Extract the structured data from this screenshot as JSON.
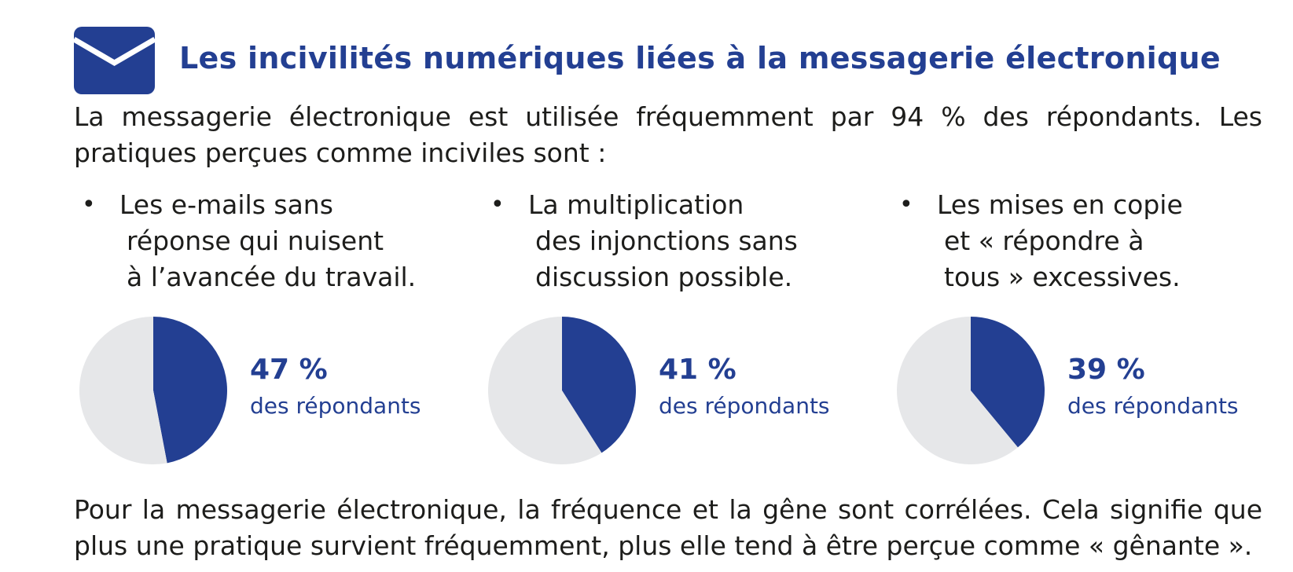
{
  "header": {
    "title": "Les incivilités numériques liées à la messagerie électronique",
    "icon": "envelope-icon",
    "brand_color": "#233f92"
  },
  "intro": "La messagerie électronique est utilisée fréquemment par 94 % des répondants. Les pratiques perçues comme inciviles sont :",
  "items": [
    {
      "lines": [
        "Les e-mails sans",
        "réponse qui nuisent",
        "à l’avancée du travail."
      ],
      "percent_label": "47 %",
      "sub": "des répondants"
    },
    {
      "lines": [
        "La multiplication",
        "des injonctions sans",
        "discussion possible."
      ],
      "percent_label": "41 %",
      "sub": "des répondants"
    },
    {
      "lines": [
        "Les mises en copie",
        "et « répondre à",
        "tous » excessives."
      ],
      "percent_label": "39 %",
      "sub": "des répondants"
    }
  ],
  "footer": "Pour la messagerie électronique, la fréquence et la gêne sont corrélées. Cela signifie que plus une pratique survient fréquemment, plus elle tend à être perçue comme « gênante ».",
  "chart_data": [
    {
      "type": "pie",
      "values": [
        47,
        53
      ],
      "colors": [
        "#233f92",
        "#e6e7e9"
      ]
    },
    {
      "type": "pie",
      "values": [
        41,
        59
      ],
      "colors": [
        "#233f92",
        "#e6e7e9"
      ]
    },
    {
      "type": "pie",
      "values": [
        39,
        61
      ],
      "colors": [
        "#233f92",
        "#e6e7e9"
      ]
    }
  ]
}
